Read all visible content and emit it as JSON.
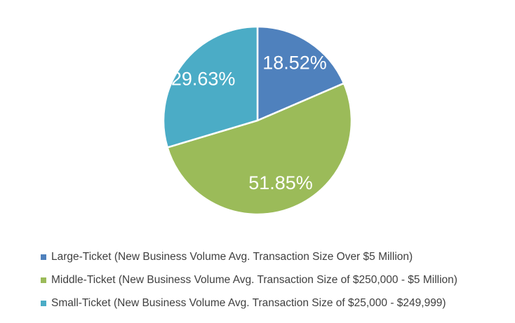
{
  "chart_data": {
    "type": "pie",
    "title": "",
    "start_angle_deg": 0,
    "direction": "clockwise",
    "slices": [
      {
        "label": "Large-Ticket (New Business Volume Avg. Transaction Size Over $5 Million)",
        "value": 18.52,
        "display": "18.52%",
        "color": "#4F81BD"
      },
      {
        "label": "Middle-Ticket (New Business Volume Avg. Transaction Size of $250,000 - $5 Million)",
        "value": 51.85,
        "display": "51.85%",
        "color": "#9BBB59"
      },
      {
        "label": "Small-Ticket (New Business Volume Avg. Transaction Size of $25,000 - $249,999)",
        "value": 29.63,
        "display": "29.63%",
        "color": "#4BACC6"
      }
    ],
    "legend_position": "bottom"
  }
}
